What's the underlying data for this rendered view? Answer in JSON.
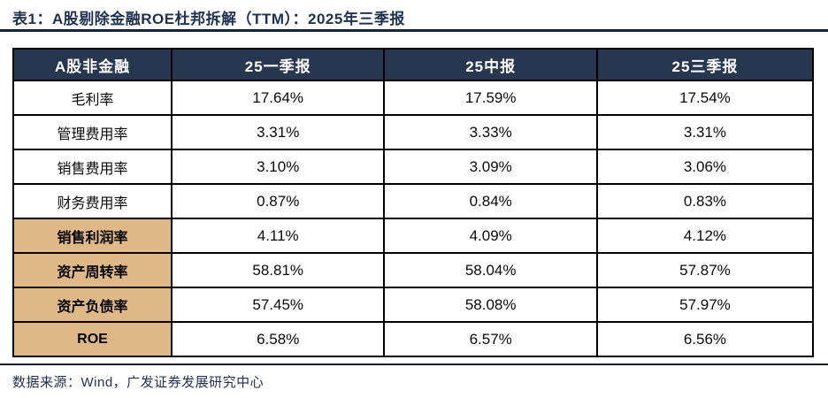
{
  "title": "表1：A股剔除金融ROE杜邦拆解（TTM）：2025年三季报",
  "colors": {
    "header_bg": "#273750",
    "header_text": "#ffffff",
    "highlight_label_bg": "#deb887",
    "title_text": "#1f3150",
    "rule": "#14233b",
    "cell_border": "#000000"
  },
  "table": {
    "headers": [
      "A股非金融",
      "25一季报",
      "25中报",
      "25三季报"
    ],
    "col_widths_pct": [
      19.8,
      26.6,
      26.6,
      27.0
    ],
    "rows": [
      {
        "label": "毛利率",
        "values": [
          "17.64%",
          "17.59%",
          "17.54%"
        ],
        "highlight": false
      },
      {
        "label": "管理费用率",
        "values": [
          "3.31%",
          "3.33%",
          "3.31%"
        ],
        "highlight": false
      },
      {
        "label": "销售费用率",
        "values": [
          "3.10%",
          "3.09%",
          "3.06%"
        ],
        "highlight": false
      },
      {
        "label": "财务费用率",
        "values": [
          "0.87%",
          "0.84%",
          "0.83%"
        ],
        "highlight": false
      },
      {
        "label": "销售利润率",
        "values": [
          "4.11%",
          "4.09%",
          "4.12%"
        ],
        "highlight": true
      },
      {
        "label": "资产周转率",
        "values": [
          "58.81%",
          "58.04%",
          "57.87%"
        ],
        "highlight": true
      },
      {
        "label": "资产负债率",
        "values": [
          "57.45%",
          "58.08%",
          "57.97%"
        ],
        "highlight": true
      },
      {
        "label": "ROE",
        "values": [
          "6.58%",
          "6.57%",
          "6.56%"
        ],
        "highlight": true
      }
    ]
  },
  "footer": {
    "source": "数据来源：Wind，广发证券发展研究中心"
  }
}
